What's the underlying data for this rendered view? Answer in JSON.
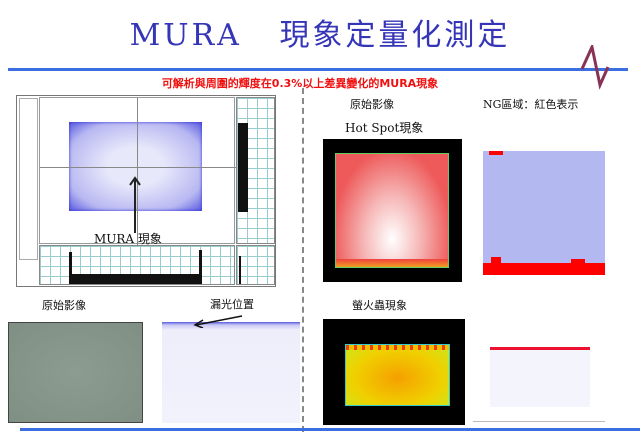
{
  "title": {
    "latin": "MURA",
    "cjk": "現象定量化測定"
  },
  "subtitle": "可解析與周圍的輝度在0.3%以上差異變化的MURA現象",
  "colors": {
    "title": "#3535b8",
    "subtitle": "#f01010",
    "rule": "#3b6ee0",
    "zigzag": "#883355",
    "ng": "#ff0000"
  },
  "left_panel": {
    "annotation": "MURA 現象",
    "raw_label": "原始影像",
    "leak_label": "漏光位置"
  },
  "right_panel": {
    "raw_label": "原始影像",
    "hotspot_label": "Hot Spot現象",
    "ng_label": "NG區域：紅色表示",
    "firefly_label": "螢火蟲現象"
  }
}
